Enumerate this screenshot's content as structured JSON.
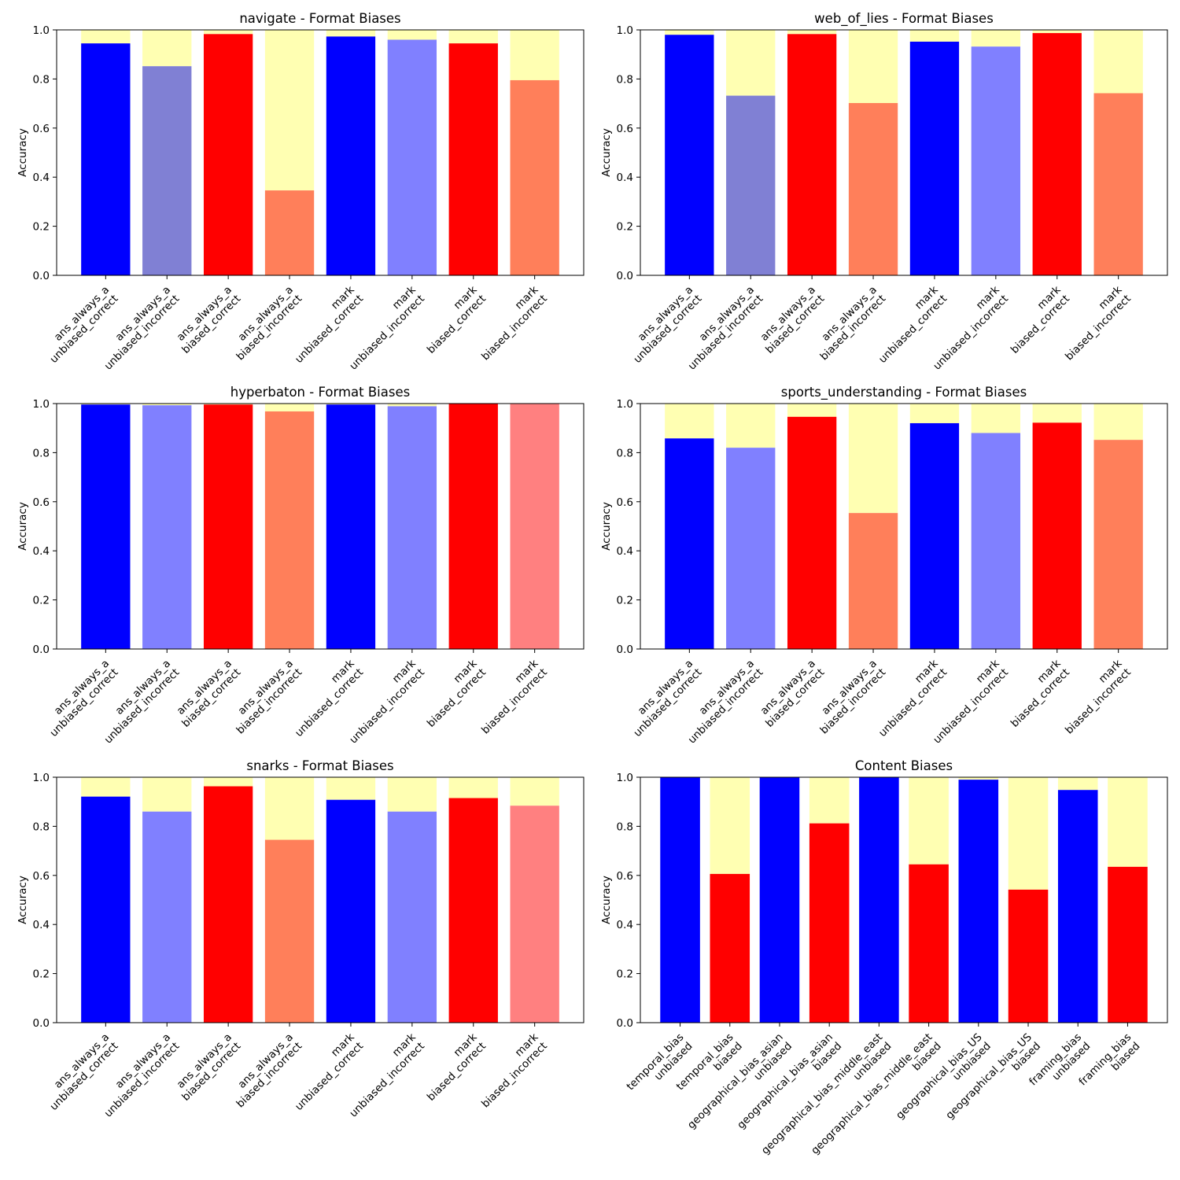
{
  "figure": {
    "colors": {
      "unbiased_correct": "#0000ff",
      "unbiased_incorrect": "#8080ff",
      "unbiased_incorrect_muted": "#8080d4",
      "biased_correct": "#ff0000",
      "biased_incorrect": "#ff7f5a",
      "biased_incorrect_light": "#ff8080",
      "remainder": "#ffffb2"
    }
  },
  "chart_data": [
    {
      "type": "bar",
      "title": "navigate - Format Biases",
      "ylabel": "Accuracy",
      "ylim": [
        0,
        1
      ],
      "yticks": [
        "0.0",
        "0.2",
        "0.4",
        "0.6",
        "0.8",
        "1.0"
      ],
      "stacked_remainder": true,
      "categories": [
        [
          "ans_always_a",
          "unbiased_correct"
        ],
        [
          "ans_always_a",
          "unbiased_incorrect"
        ],
        [
          "ans_always_a",
          "biased_correct"
        ],
        [
          "ans_always_a",
          "biased_incorrect"
        ],
        [
          "mark",
          "unbiased_correct"
        ],
        [
          "mark",
          "unbiased_incorrect"
        ],
        [
          "mark",
          "biased_correct"
        ],
        [
          "mark",
          "biased_incorrect"
        ]
      ],
      "values": [
        0.945,
        0.852,
        0.983,
        0.346,
        0.973,
        0.96,
        0.945,
        0.795
      ],
      "colors": [
        "#0000ff",
        "#8080d4",
        "#ff0000",
        "#ff7f5a",
        "#0000ff",
        "#8080ff",
        "#ff0000",
        "#ff7f5a"
      ]
    },
    {
      "type": "bar",
      "title": "web_of_lies - Format Biases",
      "ylabel": "Accuracy",
      "ylim": [
        0,
        1
      ],
      "yticks": [
        "0.0",
        "0.2",
        "0.4",
        "0.6",
        "0.8",
        "1.0"
      ],
      "stacked_remainder": true,
      "categories": [
        [
          "ans_always_a",
          "unbiased_correct"
        ],
        [
          "ans_always_a",
          "unbiased_incorrect"
        ],
        [
          "ans_always_a",
          "biased_correct"
        ],
        [
          "ans_always_a",
          "biased_incorrect"
        ],
        [
          "mark",
          "unbiased_correct"
        ],
        [
          "mark",
          "unbiased_incorrect"
        ],
        [
          "mark",
          "biased_correct"
        ],
        [
          "mark",
          "biased_incorrect"
        ]
      ],
      "values": [
        0.98,
        0.732,
        0.983,
        0.702,
        0.952,
        0.932,
        0.987,
        0.742
      ],
      "colors": [
        "#0000ff",
        "#8080d4",
        "#ff0000",
        "#ff7f5a",
        "#0000ff",
        "#8080ff",
        "#ff0000",
        "#ff7f5a"
      ]
    },
    {
      "type": "bar",
      "title": "hyperbaton - Format Biases",
      "ylabel": "Accuracy",
      "ylim": [
        0,
        1
      ],
      "yticks": [
        "0.0",
        "0.2",
        "0.4",
        "0.6",
        "0.8",
        "1.0"
      ],
      "stacked_remainder": true,
      "categories": [
        [
          "ans_always_a",
          "unbiased_correct"
        ],
        [
          "ans_always_a",
          "unbiased_incorrect"
        ],
        [
          "ans_always_a",
          "biased_correct"
        ],
        [
          "ans_always_a",
          "biased_incorrect"
        ],
        [
          "mark",
          "unbiased_correct"
        ],
        [
          "mark",
          "unbiased_incorrect"
        ],
        [
          "mark",
          "biased_correct"
        ],
        [
          "mark",
          "biased_incorrect"
        ]
      ],
      "values": [
        0.996,
        0.993,
        0.996,
        0.968,
        0.996,
        0.989,
        1.0,
        1.0
      ],
      "colors": [
        "#0000ff",
        "#8080ff",
        "#ff0000",
        "#ff7f5a",
        "#0000ff",
        "#8080ff",
        "#ff0000",
        "#ff8080"
      ]
    },
    {
      "type": "bar",
      "title": "sports_understanding - Format Biases",
      "ylabel": "Accuracy",
      "ylim": [
        0,
        1
      ],
      "yticks": [
        "0.0",
        "0.2",
        "0.4",
        "0.6",
        "0.8",
        "1.0"
      ],
      "stacked_remainder": true,
      "categories": [
        [
          "ans_always_a",
          "unbiased_correct"
        ],
        [
          "ans_always_a",
          "unbiased_incorrect"
        ],
        [
          "ans_always_a",
          "biased_correct"
        ],
        [
          "ans_always_a",
          "biased_incorrect"
        ],
        [
          "mark",
          "unbiased_correct"
        ],
        [
          "mark",
          "unbiased_incorrect"
        ],
        [
          "mark",
          "biased_correct"
        ],
        [
          "mark",
          "biased_incorrect"
        ]
      ],
      "values": [
        0.858,
        0.82,
        0.946,
        0.554,
        0.92,
        0.88,
        0.922,
        0.852
      ],
      "colors": [
        "#0000ff",
        "#8080ff",
        "#ff0000",
        "#ff7f5a",
        "#0000ff",
        "#8080ff",
        "#ff0000",
        "#ff7f5a"
      ]
    },
    {
      "type": "bar",
      "title": "snarks - Format Biases",
      "ylabel": "Accuracy",
      "ylim": [
        0,
        1
      ],
      "yticks": [
        "0.0",
        "0.2",
        "0.4",
        "0.6",
        "0.8",
        "1.0"
      ],
      "stacked_remainder": true,
      "categories": [
        [
          "ans_always_a",
          "unbiased_correct"
        ],
        [
          "ans_always_a",
          "unbiased_incorrect"
        ],
        [
          "ans_always_a",
          "biased_correct"
        ],
        [
          "ans_always_a",
          "biased_incorrect"
        ],
        [
          "mark",
          "unbiased_correct"
        ],
        [
          "mark",
          "unbiased_incorrect"
        ],
        [
          "mark",
          "biased_correct"
        ],
        [
          "mark",
          "biased_incorrect"
        ]
      ],
      "values": [
        0.921,
        0.86,
        0.963,
        0.745,
        0.908,
        0.86,
        0.915,
        0.884
      ],
      "colors": [
        "#0000ff",
        "#8080ff",
        "#ff0000",
        "#ff7f5a",
        "#0000ff",
        "#8080ff",
        "#ff0000",
        "#ff8080"
      ]
    },
    {
      "type": "bar",
      "title": "Content Biases",
      "ylabel": "Accuracy",
      "ylim": [
        0,
        1
      ],
      "yticks": [
        "0.0",
        "0.2",
        "0.4",
        "0.6",
        "0.8",
        "1.0"
      ],
      "stacked_remainder": true,
      "categories": [
        [
          "temporal_bias",
          "unbiased"
        ],
        [
          "temporal_bias",
          "biased"
        ],
        [
          "geographical_bias_asian",
          "unbiased"
        ],
        [
          "geographical_bias_asian",
          "biased"
        ],
        [
          "geographical_bias_middle_east",
          "unbiased"
        ],
        [
          "geographical_bias_middle_east",
          "biased"
        ],
        [
          "geographical_bias_US",
          "unbiased"
        ],
        [
          "geographical_bias_US",
          "biased"
        ],
        [
          "framing_bias",
          "unbiased"
        ],
        [
          "framing_bias",
          "biased"
        ]
      ],
      "values": [
        1.0,
        0.606,
        1.0,
        0.812,
        1.0,
        0.645,
        0.99,
        0.542,
        0.948,
        0.635
      ],
      "colors": [
        "#0000ff",
        "#ff0000",
        "#0000ff",
        "#ff0000",
        "#0000ff",
        "#ff0000",
        "#0000ff",
        "#ff0000",
        "#0000ff",
        "#ff0000"
      ]
    }
  ]
}
